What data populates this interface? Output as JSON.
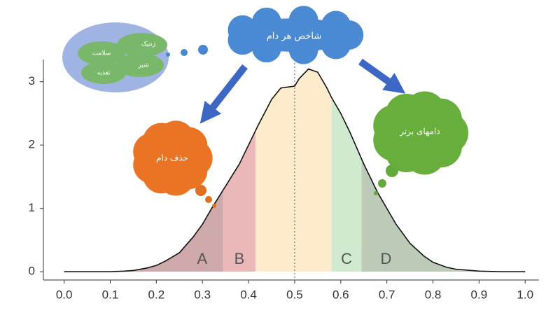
{
  "chart_data": {
    "type": "density",
    "x": [
      0.0,
      0.05,
      0.1,
      0.13,
      0.15,
      0.18,
      0.2,
      0.22,
      0.25,
      0.28,
      0.3,
      0.32,
      0.35,
      0.38,
      0.4,
      0.42,
      0.45,
      0.47,
      0.49,
      0.5,
      0.51,
      0.53,
      0.55,
      0.57,
      0.58,
      0.6,
      0.62,
      0.65,
      0.68,
      0.7,
      0.72,
      0.75,
      0.78,
      0.8,
      0.83,
      0.85,
      0.9,
      0.95,
      1.0
    ],
    "values": [
      0,
      0,
      0,
      0.01,
      0.02,
      0.06,
      0.1,
      0.17,
      0.3,
      0.55,
      0.75,
      1.0,
      1.35,
      1.7,
      2.0,
      2.3,
      2.72,
      2.9,
      2.92,
      2.93,
      3.05,
      3.2,
      3.15,
      2.9,
      2.75,
      2.5,
      2.2,
      1.7,
      1.25,
      1.0,
      0.75,
      0.45,
      0.25,
      0.15,
      0.07,
      0.04,
      0.01,
      0,
      0
    ],
    "line_color": "#111111",
    "vline": 0.5,
    "regions": [
      {
        "label": "A",
        "from": 0.0,
        "to": 0.345,
        "color": "#cfa9a9"
      },
      {
        "label": "B",
        "from": 0.345,
        "to": 0.415,
        "color": "#ebb8ba"
      },
      {
        "from": 0.415,
        "to": 0.58,
        "color": "#fdebcc"
      },
      {
        "label": "C",
        "from": 0.58,
        "to": 0.645,
        "color": "#cfeacf"
      },
      {
        "label": "D",
        "from": 0.645,
        "to": 1.0,
        "color": "#bccbb8"
      }
    ],
    "xlim": [
      -0.045,
      1.03
    ],
    "ylim": [
      -0.13,
      3.35
    ],
    "xticks": [
      {
        "value": 0,
        "label": "0.0"
      },
      0.1,
      0.2,
      0.3,
      0.4,
      0.5,
      0.6,
      0.7,
      0.8,
      0.9,
      {
        "value": 1,
        "label": "1.0"
      }
    ],
    "yticks": [
      0,
      1,
      2,
      3
    ],
    "annotations": {
      "index": "شاخص هر دام",
      "cull": "حذف دام",
      "top": "دامهای برتر",
      "traits": [
        "ژنتیک",
        "سلامت",
        "شیر",
        "تغذیه"
      ]
    }
  }
}
